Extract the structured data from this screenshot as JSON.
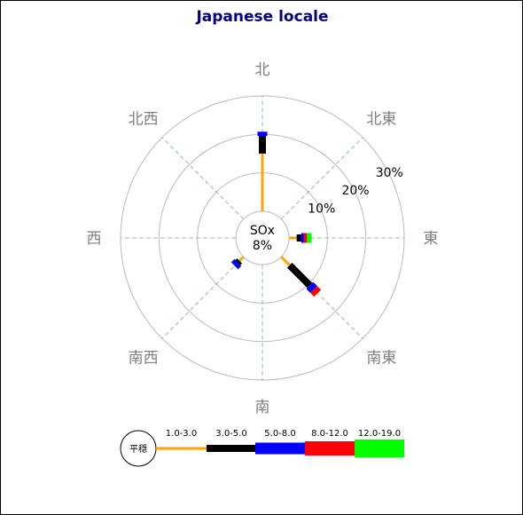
{
  "chart_data": {
    "type": "windrose",
    "title": "Japanese locale",
    "title_color": "#000080",
    "center_label": "SOx",
    "calm_value": "8%",
    "directions": [
      "北",
      "北東",
      "東",
      "南東",
      "南",
      "南西",
      "西",
      "北西"
    ],
    "range_labels": [
      "10%",
      "20%",
      "30%"
    ],
    "r_max": 30,
    "legend_calm_label": "平穏",
    "legend_bins": [
      "1.0-3.0",
      "3.0-5.0",
      "5.0-8.0",
      "8.0-12.0",
      "12.0-19.0"
    ],
    "bin_colors": [
      "#ffa500",
      "#000000",
      "#0000ff",
      "#ff0000",
      "#00ff00"
    ],
    "grid_circle_color": "#bbbbbb",
    "grid_axis_color": "#90c090",
    "compass_color": "#808080",
    "series": [
      {
        "direction": "北",
        "values": [
          15,
          4.6,
          1.1,
          0,
          0
        ]
      },
      {
        "direction": "東",
        "values": [
          2,
          1.2,
          0.7,
          0.8,
          1.2
        ]
      },
      {
        "direction": "南東",
        "values": [
          3.1,
          7.4,
          1.5,
          1.4,
          0
        ]
      },
      {
        "direction": "南西",
        "values": [
          1.5,
          0.6,
          1.2,
          0,
          0
        ]
      }
    ]
  }
}
